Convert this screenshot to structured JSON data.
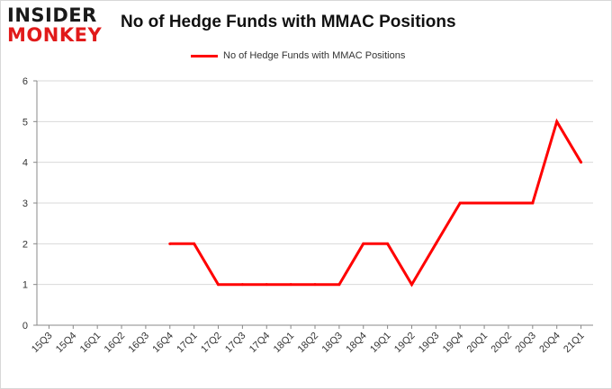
{
  "logo": {
    "line1": "INSIDER",
    "line2": "MONKEY"
  },
  "colors": {
    "series": "#ff0000",
    "grid": "#d9d9d9",
    "axis": "#888888",
    "logo_red": "#e11a1a"
  },
  "chart_data": {
    "type": "line",
    "title": "No of Hedge Funds with MMAC Positions",
    "xlabel": "",
    "ylabel": "",
    "ylim": [
      0,
      6
    ],
    "yticks": [
      "0",
      "1",
      "2",
      "3",
      "4",
      "5",
      "6"
    ],
    "grid": true,
    "legend_position": "top-center",
    "categories": [
      "15Q3",
      "15Q4",
      "16Q1",
      "16Q2",
      "16Q3",
      "16Q4",
      "17Q1",
      "17Q2",
      "17Q3",
      "17Q4",
      "18Q1",
      "18Q2",
      "18Q3",
      "18Q4",
      "19Q1",
      "19Q2",
      "19Q3",
      "19Q4",
      "20Q1",
      "20Q2",
      "20Q3",
      "20Q4",
      "21Q1"
    ],
    "series": [
      {
        "name": "No of Hedge Funds with MMAC Positions",
        "color": "#ff0000",
        "values": [
          null,
          null,
          null,
          null,
          null,
          2,
          2,
          1,
          1,
          1,
          1,
          1,
          1,
          2,
          2,
          1,
          2,
          3,
          3,
          3,
          3,
          5,
          4
        ]
      }
    ]
  }
}
